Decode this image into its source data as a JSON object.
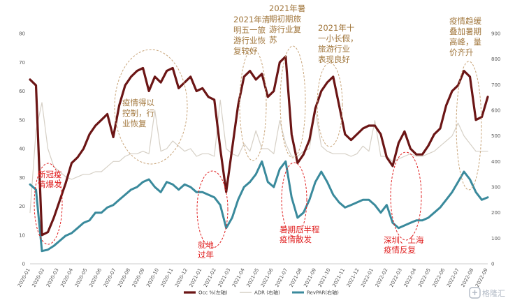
{
  "chart_data": {
    "type": "line",
    "xlabels": [
      "2020-01",
      "2020-02",
      "2020-03",
      "2020-04",
      "2020-05",
      "2020-06",
      "2020-07",
      "2020-08",
      "2020-09",
      "2020-10",
      "2020-11",
      "2020-12",
      "2021-01",
      "2021-02",
      "2021-03",
      "2021-04",
      "2021-05",
      "2021-06",
      "2021-07",
      "2021-08",
      "2021-09",
      "2021-10",
      "2021-11",
      "2021-12",
      "2022-01",
      "2022-02",
      "2022-03",
      "2022-04",
      "2022-05",
      "2022-06",
      "2022-07",
      "2022-08",
      "2022-09"
    ],
    "y_left": {
      "range": [
        0,
        80
      ],
      "ticks": [
        "0",
        "10",
        "20",
        "30",
        "40",
        "50",
        "60",
        "70",
        "80"
      ]
    },
    "y_right": {
      "range": [
        0,
        900
      ],
      "ticks": [
        "0",
        "100",
        "200",
        "300",
        "400",
        "500",
        "600",
        "700",
        "800",
        "900"
      ]
    },
    "series": [
      {
        "name": "Occ %(左轴)",
        "axis": "left",
        "color": "#6b1515",
        "values": [
          64,
          62,
          10,
          11,
          16,
          22,
          28,
          35,
          37,
          40,
          45,
          48,
          50,
          52,
          44,
          55,
          62,
          65,
          67,
          68,
          60,
          65,
          63,
          67,
          68,
          61,
          63,
          65,
          60,
          61,
          58,
          57,
          40,
          25,
          40,
          55,
          65,
          67,
          64,
          66,
          58,
          60,
          70,
          72,
          45,
          35,
          38,
          43,
          54,
          60,
          63,
          65,
          55,
          45,
          43,
          45,
          47,
          48,
          48,
          45,
          37,
          34,
          42,
          46,
          40,
          38,
          38,
          41,
          45,
          47,
          55,
          60,
          62,
          67,
          65,
          50,
          51,
          58
        ]
      },
      {
        "name": "ADR (右轴)",
        "axis": "right",
        "color": "#d6d0c6",
        "values": [
          200,
          520,
          630,
          450,
          380,
          360,
          340,
          330,
          340,
          350,
          350,
          360,
          360,
          380,
          400,
          400,
          420,
          430,
          430,
          440,
          430,
          600,
          440,
          450,
          480,
          460,
          440,
          450,
          420,
          430,
          430,
          420,
          640,
          450,
          430,
          420,
          470,
          440,
          520,
          450,
          450,
          430,
          560,
          470,
          420,
          420,
          440,
          450,
          600,
          460,
          440,
          430,
          430,
          430,
          420,
          430,
          460,
          440,
          560,
          420,
          420,
          400,
          410,
          420,
          430,
          420,
          420,
          430,
          440,
          460,
          480,
          500,
          550,
          500,
          470,
          440,
          440,
          440
        ]
      },
      {
        "name": "RevPAR(右轴)",
        "axis": "right",
        "color": "#3a8a9c",
        "values": [
          310,
          290,
          50,
          55,
          70,
          90,
          110,
          120,
          140,
          160,
          170,
          200,
          200,
          220,
          230,
          250,
          270,
          290,
          300,
          320,
          330,
          300,
          280,
          320,
          310,
          290,
          310,
          300,
          280,
          280,
          270,
          260,
          230,
          140,
          180,
          250,
          300,
          320,
          350,
          400,
          320,
          300,
          370,
          400,
          260,
          180,
          200,
          250,
          320,
          360,
          320,
          270,
          240,
          220,
          230,
          240,
          250,
          250,
          230,
          200,
          230,
          160,
          140,
          150,
          160,
          170,
          170,
          180,
          200,
          220,
          250,
          280,
          320,
          360,
          330,
          280,
          250,
          260
        ]
      }
    ],
    "annotations": [
      {
        "id": "ann-1",
        "text": [
          "新冠疫",
          "情爆发"
        ],
        "color": "red"
      },
      {
        "id": "ann-2",
        "text": [
          "疫情得以",
          "控制，行",
          "业恢复"
        ],
        "color": "brown"
      },
      {
        "id": "ann-3",
        "text": [
          "就地",
          "过年"
        ],
        "color": "red"
      },
      {
        "id": "ann-4",
        "text": [
          "2021年清",
          "明五一旅",
          "游行业恢",
          "复较好"
        ],
        "color": "brown"
      },
      {
        "id": "ann-5",
        "text": [
          "2021年暑",
          "期初期旅",
          "游行业复",
          "苏"
        ],
        "color": "brown"
      },
      {
        "id": "ann-6",
        "text": [
          "暑期后半程",
          "疫情散发"
        ],
        "color": "red"
      },
      {
        "id": "ann-7",
        "text": [
          "2021年十",
          "一小长假，",
          "旅游行业",
          "表现良好"
        ],
        "color": "brown"
      },
      {
        "id": "ann-8",
        "text": [
          "深圳、上海",
          "疫情反复"
        ],
        "color": "red"
      },
      {
        "id": "ann-9",
        "text": [
          "疫情趋缓",
          "叠加暑期",
          "高峰，量",
          "价齐升"
        ],
        "color": "brown"
      }
    ]
  },
  "watermark": {
    "text": "格隆汇"
  }
}
